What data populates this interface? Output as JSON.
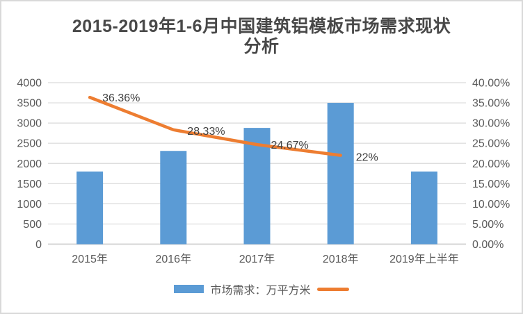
{
  "frame": {
    "background": "#ffffff",
    "border_color": "#d9d9d9"
  },
  "chart_data": {
    "type": "bar",
    "title": "2015-2019年1-6月中国建筑铝模板市场需求现状分析",
    "categories": [
      "2015年",
      "2016年",
      "2017年",
      "2018年",
      "2019年上半年"
    ],
    "series": [
      {
        "name": "市场需求：万平方米",
        "type": "bar",
        "axis": "left",
        "color": "#5b9bd5",
        "values": [
          1800,
          2310,
          2880,
          3500,
          1800
        ]
      },
      {
        "name": "",
        "type": "line",
        "axis": "right",
        "color": "#ed7d31",
        "values": [
          36.36,
          28.33,
          24.67,
          22
        ],
        "point_labels": [
          "36.36%",
          "28.33%",
          "24.67%",
          "22%"
        ]
      }
    ],
    "left_axis": {
      "min": 0,
      "max": 4000,
      "step": 500,
      "tick_labels": [
        "4000",
        "3500",
        "3000",
        "2500",
        "2000",
        "1500",
        "1000",
        "500",
        "0"
      ]
    },
    "right_axis": {
      "min": 0,
      "max": 40,
      "step": 5,
      "tick_labels": [
        "40.00%",
        "35.00%",
        "30.00%",
        "25.00%",
        "20.00%",
        "15.00%",
        "10.00%",
        "5.00%",
        "0.00%"
      ]
    },
    "gridlines": true,
    "legend_position": "bottom",
    "grid_color": "#d9d9d9",
    "baseline_color": "#d6d6d6",
    "tick_color": "#595959",
    "data_label_color": "#404040",
    "title_color": "#484848"
  }
}
